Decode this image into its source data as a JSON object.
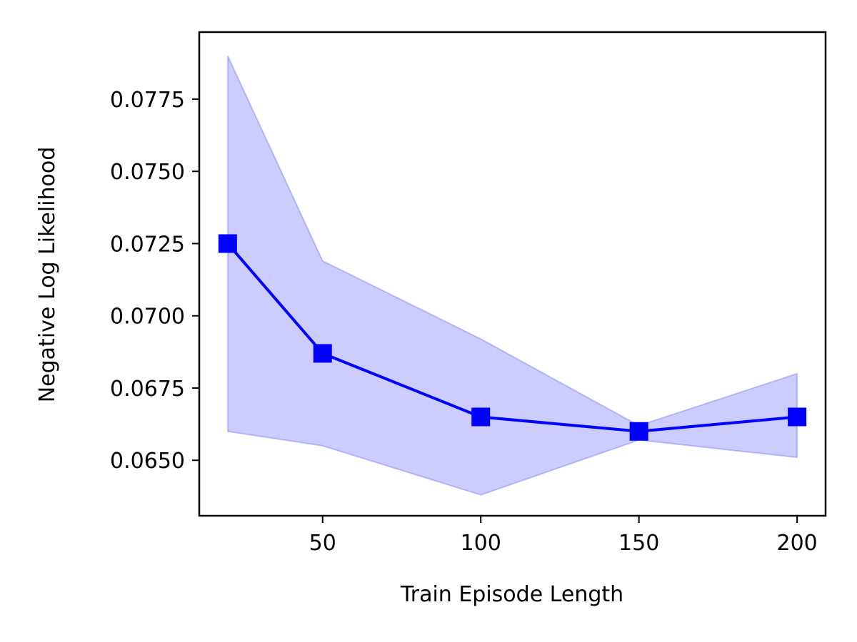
{
  "chart_data": {
    "type": "line",
    "title": "",
    "xlabel": "Train Episode Length",
    "ylabel": "Negative Log Likelihood",
    "xlim": [
      11,
      209
    ],
    "ylim": [
      0.06308,
      0.07982
    ],
    "x_ticks": [
      50,
      100,
      150,
      200
    ],
    "x_tick_labels": [
      "50",
      "100",
      "150",
      "200"
    ],
    "y_ticks": [
      0.065,
      0.0675,
      0.07,
      0.0725,
      0.075,
      0.0775
    ],
    "y_tick_labels": [
      "0.0650",
      "0.0675",
      "0.0700",
      "0.0725",
      "0.0750",
      "0.0775"
    ],
    "grid": false,
    "legend": "none",
    "series": [
      {
        "x": [
          20,
          50,
          100,
          150,
          200
        ],
        "values": [
          0.0725,
          0.0687,
          0.0665,
          0.066,
          0.0665
        ],
        "lower": [
          0.066,
          0.0655,
          0.0638,
          0.0657,
          0.0651
        ],
        "upper": [
          0.079,
          0.0719,
          0.0692,
          0.0662,
          0.068
        ],
        "color": "#0000ff",
        "band_color": "#ccccff",
        "marker": "square"
      }
    ]
  }
}
